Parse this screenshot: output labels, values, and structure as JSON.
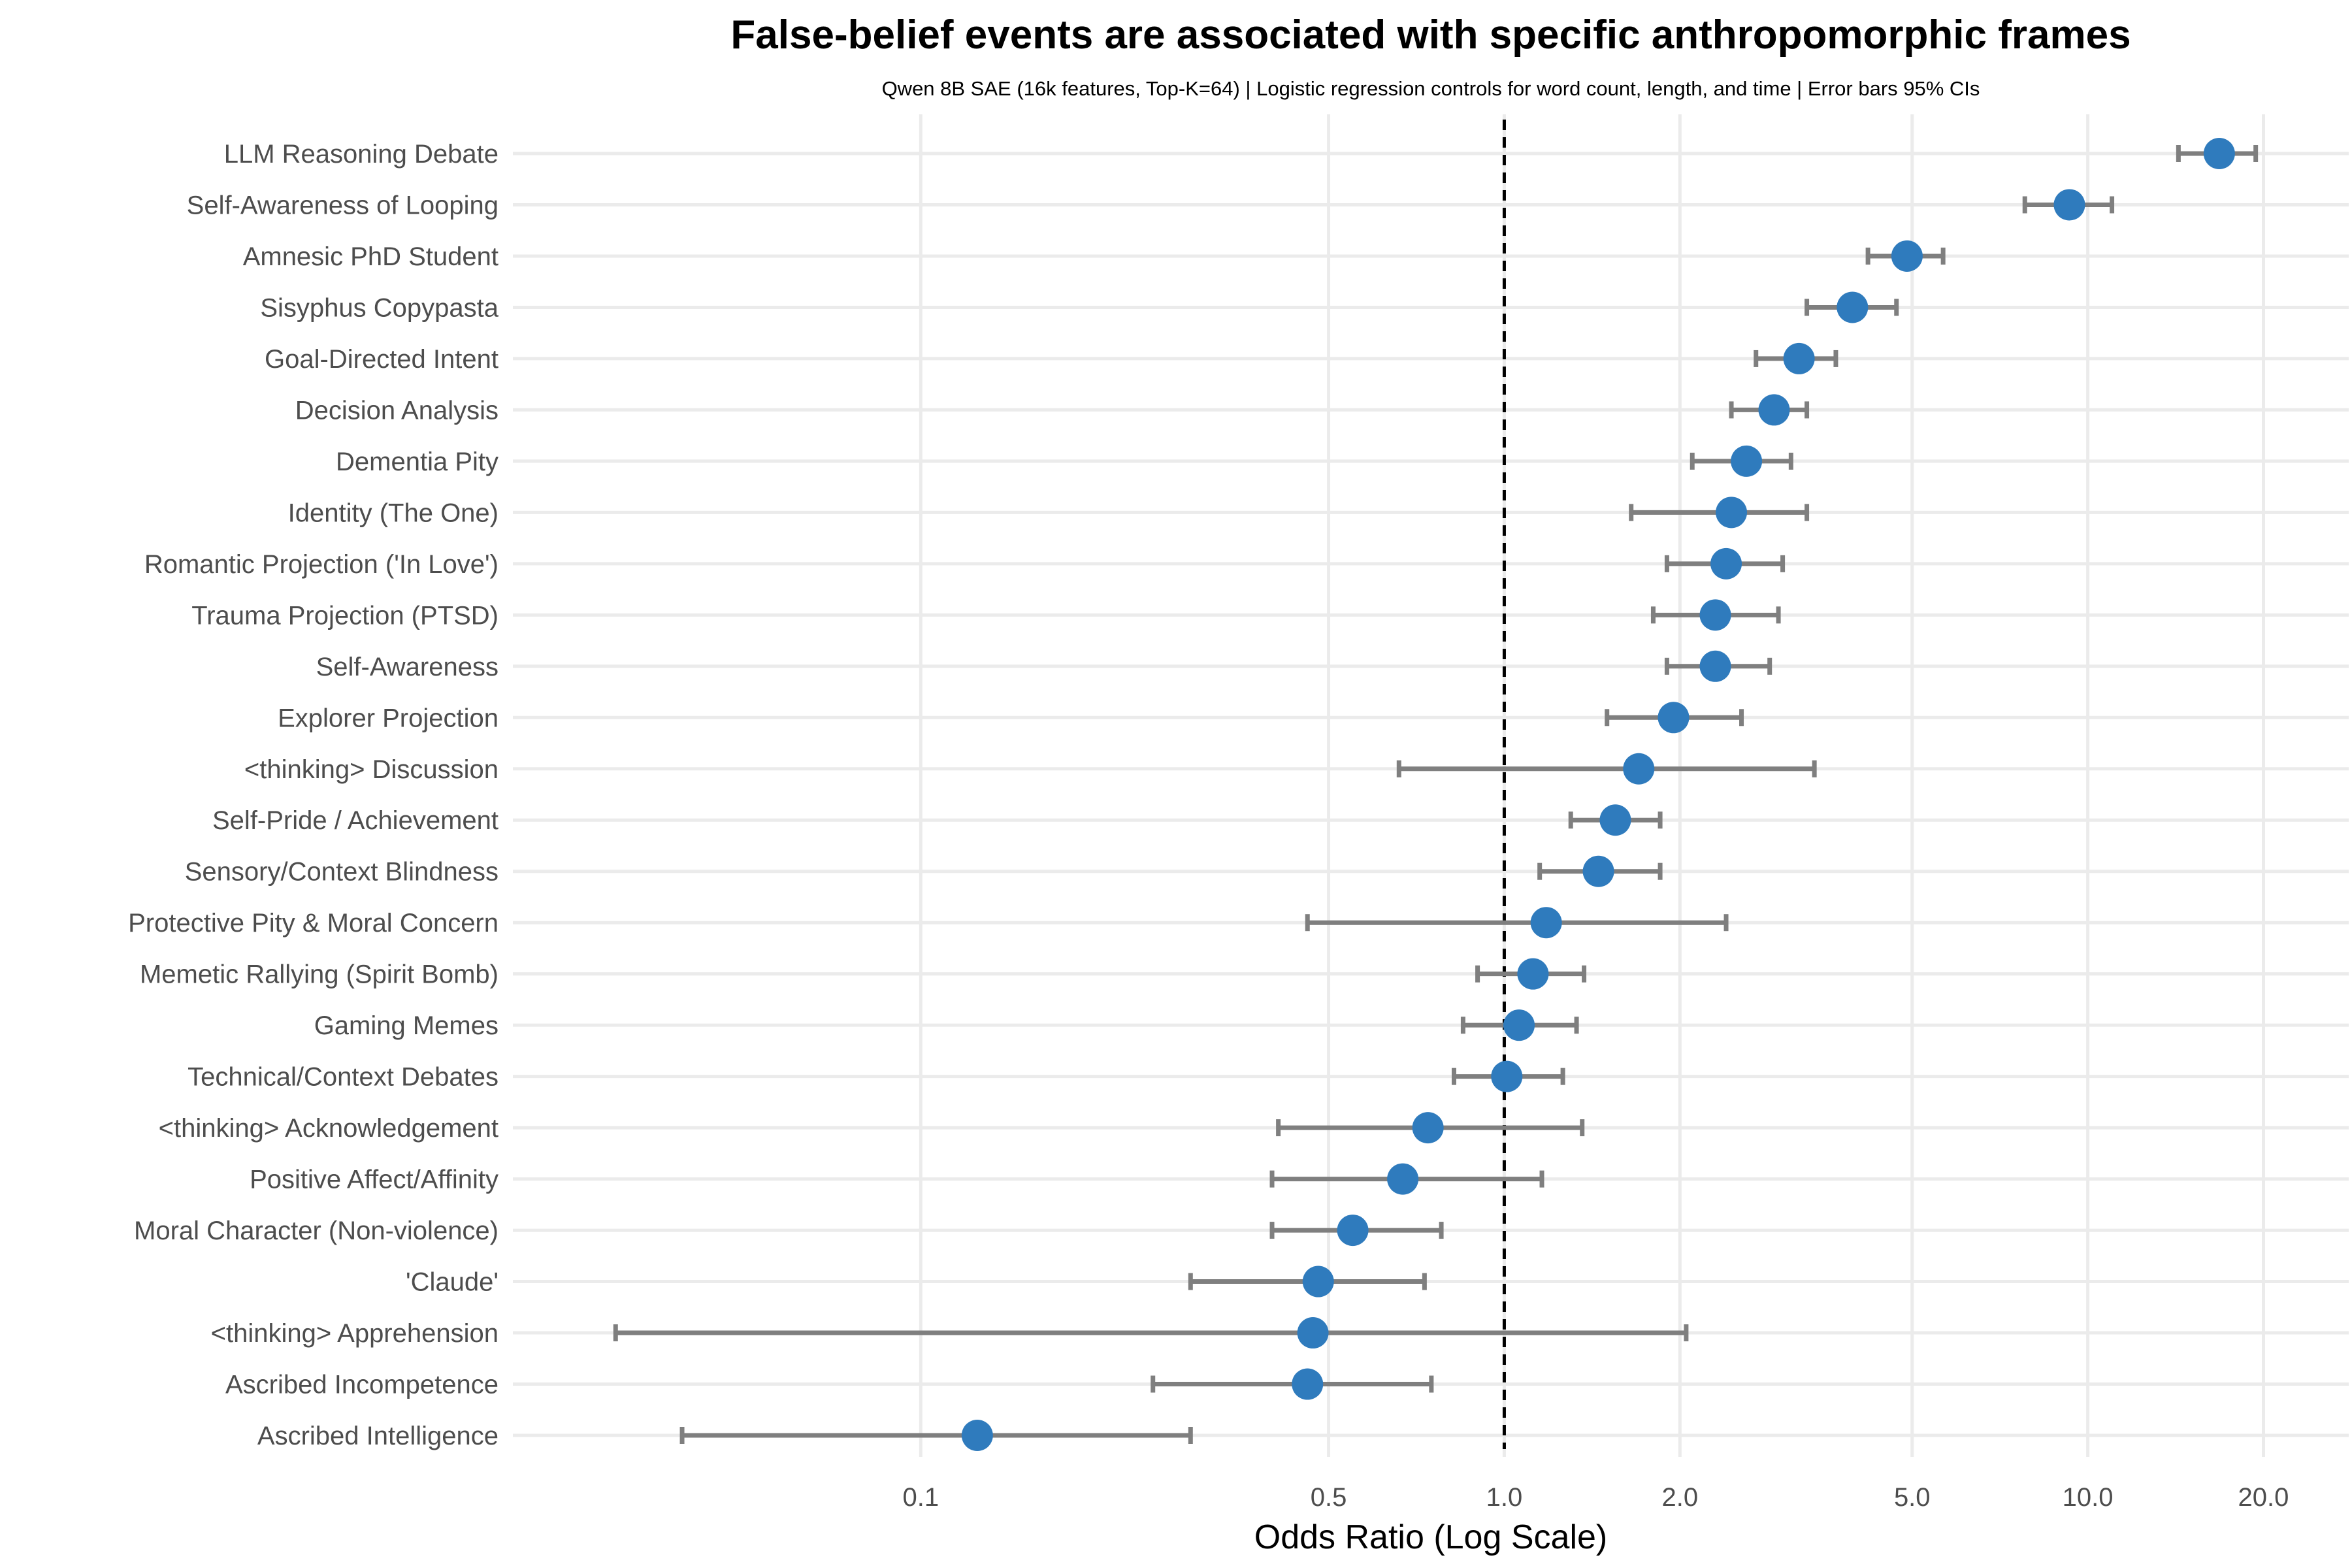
{
  "chart_data": {
    "type": "forest",
    "title": "False-belief events are associated with specific anthropomorphic frames",
    "subtitle": "Qwen 8B SAE (16k features, Top-K=64) | Logistic regression controls for word count, length, and time | Error bars 95% CIs",
    "xlabel": "Odds Ratio (Log Scale)",
    "ylabel": "",
    "x_scale": "log",
    "xlim": [
      0.02,
      28
    ],
    "x_ticks": [
      0.1,
      0.5,
      1.0,
      2.0,
      5.0,
      10.0,
      20.0
    ],
    "x_tick_labels": [
      "0.1",
      "0.5",
      "1.0",
      "2.0",
      "5.0",
      "10.0",
      "20.0"
    ],
    "reference_line": 1.0,
    "grid": true,
    "legend": "none",
    "colors": {
      "point": "#2f7bbd",
      "error_bar": "#7f7f7f",
      "grid": "#ebebeb",
      "reference_line": "#000000"
    },
    "series": [
      {
        "label": "LLM Reasoning Debate",
        "or": 16.8,
        "lo": 14.3,
        "hi": 19.4
      },
      {
        "label": "Self-Awareness of Looping",
        "or": 9.3,
        "lo": 7.8,
        "hi": 11.0
      },
      {
        "label": "Amnesic PhD Student",
        "or": 4.9,
        "lo": 4.2,
        "hi": 5.65
      },
      {
        "label": "Sisyphus Copypasta",
        "or": 3.95,
        "lo": 3.3,
        "hi": 4.7
      },
      {
        "label": "Goal-Directed Intent",
        "or": 3.2,
        "lo": 2.7,
        "hi": 3.7
      },
      {
        "label": "Decision Analysis",
        "or": 2.9,
        "lo": 2.45,
        "hi": 3.3
      },
      {
        "label": "Dementia Pity",
        "or": 2.6,
        "lo": 2.1,
        "hi": 3.1
      },
      {
        "label": "Identity (The One)",
        "or": 2.45,
        "lo": 1.65,
        "hi": 3.3
      },
      {
        "label": "Romantic Projection ('In Love')",
        "or": 2.4,
        "lo": 1.9,
        "hi": 3.0
      },
      {
        "label": "Trauma Projection (PTSD)",
        "or": 2.3,
        "lo": 1.8,
        "hi": 2.95
      },
      {
        "label": "Self-Awareness",
        "or": 2.3,
        "lo": 1.9,
        "hi": 2.85
      },
      {
        "label": "Explorer Projection",
        "or": 1.95,
        "lo": 1.5,
        "hi": 2.55
      },
      {
        "label": "<thinking> Discussion",
        "or": 1.7,
        "lo": 0.66,
        "hi": 3.4
      },
      {
        "label": "Self-Pride / Achievement",
        "or": 1.55,
        "lo": 1.3,
        "hi": 1.85
      },
      {
        "label": "Sensory/Context Blindness",
        "or": 1.45,
        "lo": 1.15,
        "hi": 1.85
      },
      {
        "label": "Protective Pity & Moral Concern",
        "or": 1.18,
        "lo": 0.46,
        "hi": 2.4
      },
      {
        "label": "Memetic Rallying (Spirit Bomb)",
        "or": 1.12,
        "lo": 0.9,
        "hi": 1.37
      },
      {
        "label": "Gaming Memes",
        "or": 1.06,
        "lo": 0.85,
        "hi": 1.33
      },
      {
        "label": "Technical/Context Debates",
        "or": 1.01,
        "lo": 0.82,
        "hi": 1.26
      },
      {
        "label": "<thinking> Acknowledgement",
        "or": 0.74,
        "lo": 0.41,
        "hi": 1.36
      },
      {
        "label": "Positive Affect/Affinity",
        "or": 0.67,
        "lo": 0.4,
        "hi": 1.16
      },
      {
        "label": "Moral Character (Non-violence)",
        "or": 0.55,
        "lo": 0.4,
        "hi": 0.78
      },
      {
        "label": "'Claude'",
        "or": 0.48,
        "lo": 0.29,
        "hi": 0.73
      },
      {
        "label": "<thinking> Apprehension",
        "or": 0.47,
        "lo": 0.03,
        "hi": 2.05
      },
      {
        "label": "Ascribed Incompetence",
        "or": 0.46,
        "lo": 0.25,
        "hi": 0.75
      },
      {
        "label": "Ascribed Intelligence",
        "or": 0.125,
        "lo": 0.039,
        "hi": 0.29
      }
    ]
  }
}
